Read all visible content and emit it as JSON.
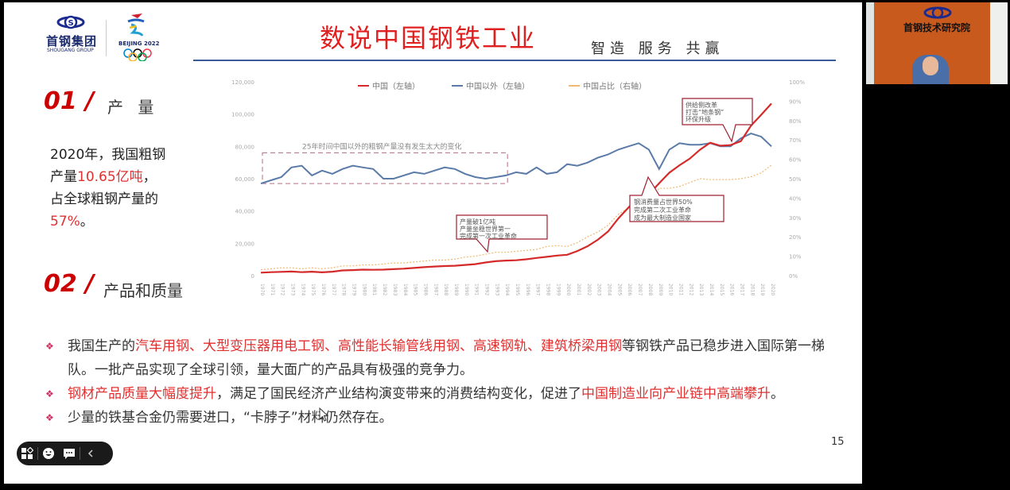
{
  "slide": {
    "logo": {
      "company": "首钢集团",
      "company_en": "SHOUGANG GROUP",
      "olympic": "BEIJING 2022"
    },
    "title": "数说中国钢铁工业",
    "subtitle": "智造 服务 共赢",
    "section1": {
      "num": "01 /",
      "label": "产 量"
    },
    "stat": {
      "line1": "2020年，我国粗钢",
      "line2_pre": "产量",
      "line2_hl": "10.65亿吨",
      "line2_post": "，",
      "line3": "占全球粗钢产量的",
      "line4_hl": "57%",
      "line4_post": "。"
    },
    "section2": {
      "num": "02 /",
      "label": "产品和质量"
    },
    "bullets": [
      {
        "parts": [
          {
            "text": "我国生产的",
            "hl": false
          },
          {
            "text": "汽车用钢、大型变压器用电工钢、高性能长输管线用钢、高速钢轨、建筑桥梁用钢",
            "hl": true
          },
          {
            "text": "等钢铁产品已稳步进入国际第一梯队。一批产品实现了全球引领，量大面广的产品具有极强的竞争力。",
            "hl": false
          }
        ]
      },
      {
        "parts": [
          {
            "text": "钢材产品质量大幅度提升",
            "hl": true
          },
          {
            "text": "，满足了国民经济产业结构演变带来的消费结构变化，促进了",
            "hl": false
          },
          {
            "text": "中国制造业向产业链中高端攀升",
            "hl": true
          },
          {
            "text": "。",
            "hl": false
          }
        ]
      },
      {
        "parts": [
          {
            "text": "少量的铁基合金仍需要进口，“卡脖子”材料仍然存在。",
            "hl": false
          }
        ]
      }
    ],
    "page_number": "15"
  },
  "camera": {
    "org_sign": "首钢技术研究院"
  },
  "toolbar": {
    "icons": [
      "apps-icon",
      "emoji-icon",
      "chat-icon",
      "collapse-icon"
    ]
  },
  "colors": {
    "accent_red": "#e02020",
    "china_line": "#d42a2a",
    "rest_line": "#5a7aa8",
    "share_line": "#f0b870",
    "title_rule": "#3a5a9a"
  },
  "chart_data": {
    "type": "line",
    "title": "",
    "legend": [
      "中国（左轴）",
      "中国以外（左轴）",
      "中国占比（右轴）"
    ],
    "left_axis": {
      "ticks": [
        "0",
        "20,000",
        "40,000",
        "60,000",
        "80,000",
        "100,000",
        "120,000"
      ],
      "range": [
        0,
        120000
      ]
    },
    "right_axis": {
      "ticks": [
        "0%",
        "10%",
        "20%",
        "30%",
        "40%",
        "50%",
        "60%",
        "70%",
        "80%",
        "90%",
        "100%"
      ],
      "range": [
        0,
        100
      ]
    },
    "x": [
      1970,
      1971,
      1972,
      1973,
      1974,
      1975,
      1976,
      1977,
      1978,
      1979,
      1980,
      1981,
      1982,
      1983,
      1984,
      1985,
      1986,
      1987,
      1988,
      1989,
      1990,
      1991,
      1992,
      1993,
      1994,
      1995,
      1996,
      1997,
      1998,
      1999,
      2000,
      2001,
      2002,
      2003,
      2004,
      2005,
      2006,
      2007,
      2008,
      2009,
      2010,
      2011,
      2012,
      2013,
      2014,
      2015,
      2016,
      2017,
      2018,
      2019,
      2020
    ],
    "series": [
      {
        "name": "中国（左轴）",
        "axis": "left",
        "values": [
          1800,
          2100,
          2300,
          2500,
          2100,
          2400,
          2000,
          2400,
          3200,
          3400,
          3700,
          3600,
          3700,
          4000,
          4300,
          4700,
          5200,
          5600,
          5900,
          6100,
          6600,
          7100,
          8100,
          8900,
          9300,
          9500,
          10100,
          10900,
          11600,
          12400,
          12900,
          15200,
          18200,
          22200,
          27300,
          35300,
          42100,
          48900,
          50300,
          57200,
          63700,
          68300,
          72400,
          77900,
          82300,
          80400,
          80800,
          83200,
          92800,
          99600,
          106500
        ]
      },
      {
        "name": "中国以外（左轴）",
        "axis": "left",
        "values": [
          57000,
          59000,
          61000,
          67000,
          68000,
          62000,
          65000,
          63000,
          66000,
          68000,
          67000,
          66000,
          60000,
          60000,
          62000,
          64000,
          63000,
          65000,
          67000,
          66000,
          63000,
          61000,
          60000,
          61000,
          62000,
          64000,
          63000,
          67000,
          63000,
          64000,
          69000,
          68000,
          70000,
          73000,
          75000,
          78000,
          80000,
          82000,
          78000,
          66000,
          78000,
          82000,
          81000,
          81000,
          82000,
          80000,
          80000,
          85000,
          88000,
          86000,
          80000
        ]
      },
      {
        "name": "中国占比（右轴）",
        "axis": "right",
        "values": [
          3,
          3.5,
          4,
          4,
          3.5,
          4,
          3.5,
          4,
          5,
          5,
          5.5,
          5.5,
          6,
          6.5,
          6.5,
          7,
          7.5,
          8,
          8,
          8.5,
          9.5,
          10,
          11,
          12,
          12,
          12.5,
          13,
          13.5,
          15,
          15.5,
          15,
          17,
          20,
          22.5,
          26,
          31.5,
          35,
          39,
          38,
          45,
          45,
          46,
          48,
          50,
          49.5,
          49.5,
          49.5,
          50,
          51,
          53,
          57
        ]
      }
    ],
    "annotations": [
      {
        "text": "25年时间中国以外的粗钢产量没有发生太大的变化",
        "type": "dashed-box"
      },
      {
        "text": "产量破1亿吨\n产量坐稳世界第一\n完成第一次工业革命",
        "type": "callout"
      },
      {
        "text": "钢消费量占世界50%\n完成第二次工业革命\n成为最大制造业国家",
        "type": "callout"
      },
      {
        "text": "供给侧改革\n打击“地条钢”\n环保升级",
        "type": "callout"
      }
    ],
    "xlabel": "",
    "ylabel": ""
  }
}
